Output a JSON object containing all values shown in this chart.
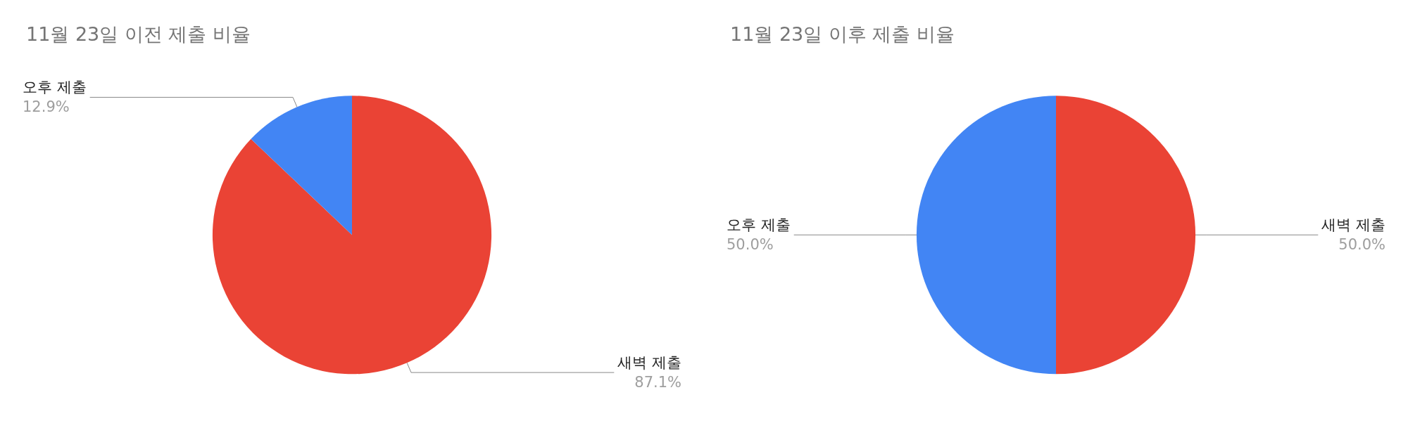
{
  "chart_data": [
    {
      "type": "pie",
      "title": "11월 23일 이전 제출 비율",
      "categories": [
        "새벽 제출",
        "오후 제출"
      ],
      "values": [
        87.1,
        12.9
      ],
      "colors": [
        "#ea4335",
        "#4285f4"
      ],
      "value_labels": [
        "87.1%",
        "12.9%"
      ]
    },
    {
      "type": "pie",
      "title": "11월 23일 이후 제출 비율",
      "categories": [
        "새벽 제출",
        "오후 제출"
      ],
      "values": [
        50.0,
        50.0
      ],
      "colors": [
        "#ea4335",
        "#4285f4"
      ],
      "value_labels": [
        "50.0%",
        "50.0%"
      ]
    }
  ]
}
